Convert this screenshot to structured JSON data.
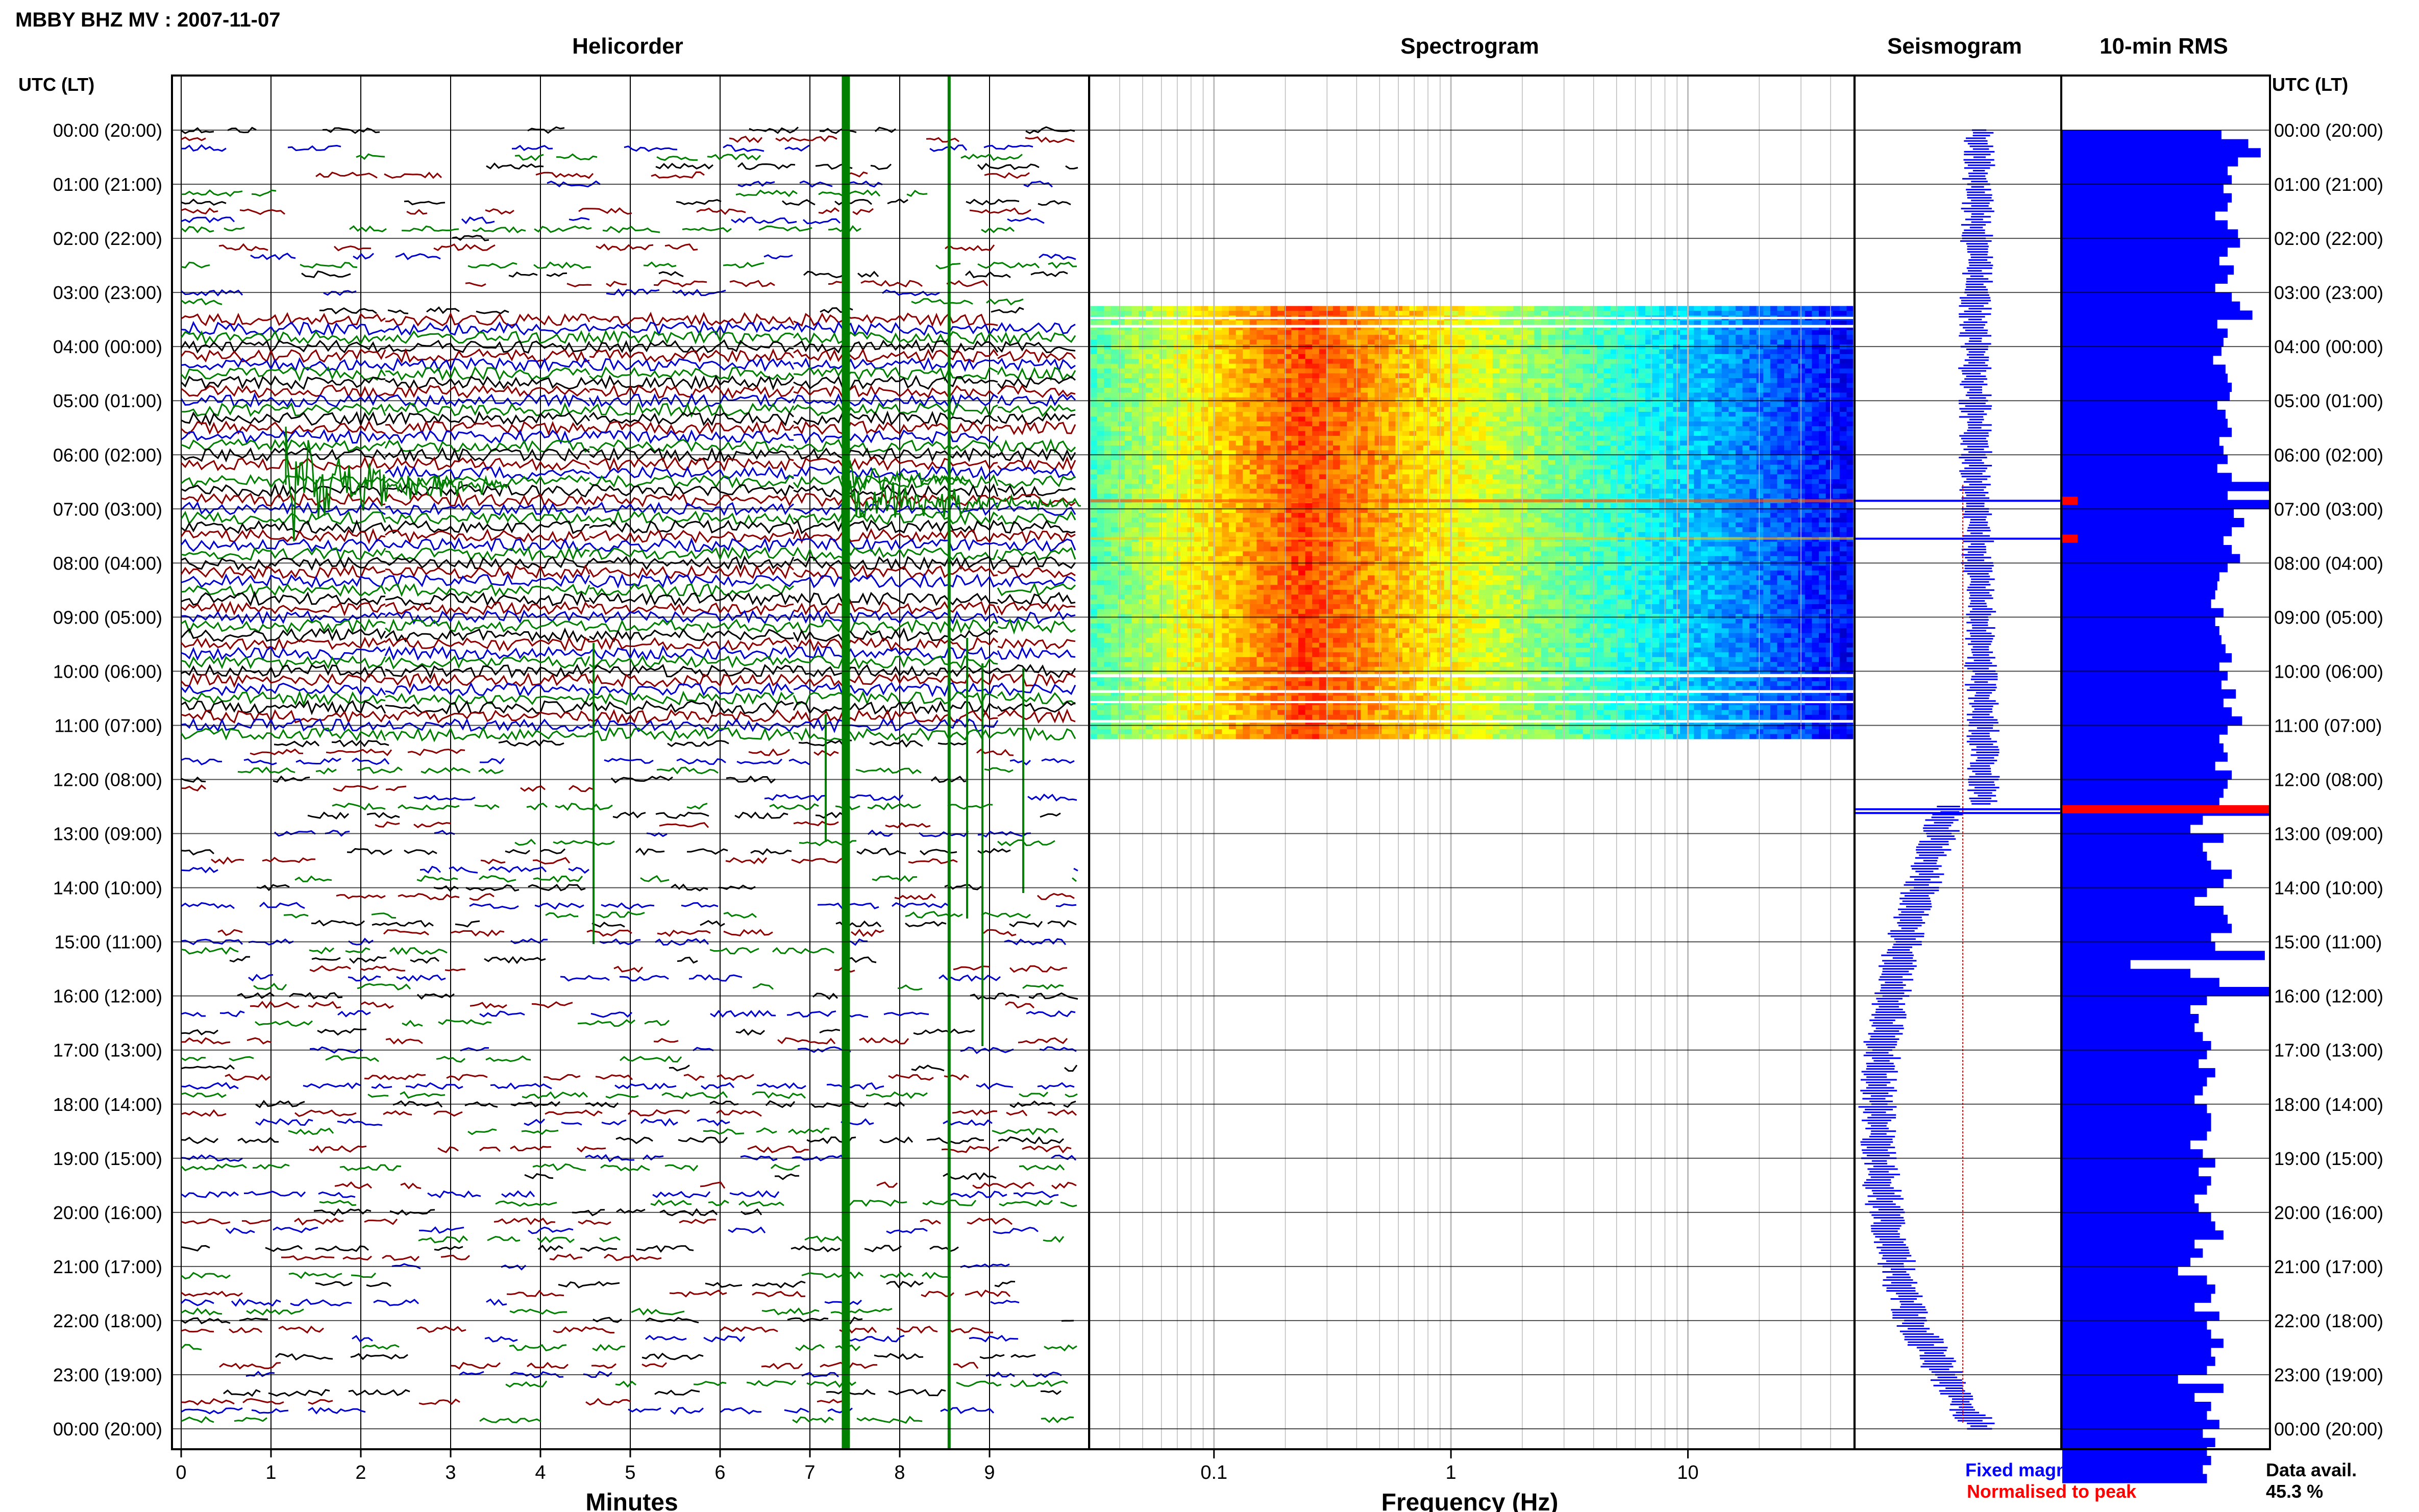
{
  "title": "MBBY BHZ MV : 2007-11-07",
  "panels": {
    "helicorder": "Helicorder",
    "spectrogram": "Spectrogram",
    "seismogram": "Seismogram",
    "rms": "10-min RMS"
  },
  "time_axis_label": "UTC (LT)",
  "time_labels": [
    "00:00 (20:00)",
    "01:00 (21:00)",
    "02:00 (22:00)",
    "03:00 (23:00)",
    "04:00 (00:00)",
    "05:00 (01:00)",
    "06:00 (02:00)",
    "07:00 (03:00)",
    "08:00 (04:00)",
    "09:00 (05:00)",
    "10:00 (06:00)",
    "11:00 (07:00)",
    "12:00 (08:00)",
    "13:00 (09:00)",
    "14:00 (10:00)",
    "15:00 (11:00)",
    "16:00 (12:00)",
    "17:00 (13:00)",
    "18:00 (14:00)",
    "19:00 (15:00)",
    "20:00 (16:00)",
    "21:00 (17:00)",
    "22:00 (18:00)",
    "23:00 (19:00)",
    "00:00 (20:00)"
  ],
  "helicorder_axis": {
    "label": "Minutes",
    "ticks": [
      "0",
      "1",
      "2",
      "3",
      "4",
      "5",
      "6",
      "7",
      "8",
      "9"
    ]
  },
  "spectrogram_axis": {
    "label": "Frequency (Hz)",
    "ticks": [
      "0.1",
      "1",
      "10"
    ]
  },
  "seismogram_legend": {
    "fixed": "Fixed magnification",
    "normalised": "Normalised to peak"
  },
  "data_availability": {
    "label": "Data avail.",
    "value": "45.3 %"
  },
  "colors": {
    "trace_colors": [
      "#000000",
      "#8b0000",
      "#0000cc",
      "#007f00"
    ],
    "event_marker": "#007f00",
    "fixed_magnification": "#0000ff",
    "normalised_to_peak": "#ff0000",
    "rms_bar": "#0000ff",
    "rms_peak": "#ff0000"
  },
  "chart_data": [
    {
      "type": "line",
      "panel": "Helicorder",
      "xlabel": "Minutes",
      "xlim": [
        0,
        10
      ],
      "ylabel": "UTC (LT)",
      "y_range_hours": [
        0,
        24
      ],
      "lines_per_hour": 6,
      "dense_data_hours": [
        3.5,
        11.2
      ],
      "event_minutes": [
        7.4,
        8.55
      ]
    },
    {
      "type": "heatmap",
      "panel": "Spectrogram",
      "xlabel": "Frequency (Hz)",
      "x_scale": "log",
      "xlim": [
        0.03,
        50
      ],
      "data_hours": [
        3.25,
        11.25
      ],
      "dominant_frequency_hz": [
        0.15,
        0.35
      ],
      "colormap": "jet"
    },
    {
      "type": "line",
      "panel": "Seismogram",
      "series": [
        {
          "name": "Fixed magnification",
          "color": "#0000ff"
        },
        {
          "name": "Normalised to peak",
          "color": "#ff0000"
        }
      ],
      "data_hours": [
        0,
        24
      ]
    },
    {
      "type": "bar",
      "panel": "10-min RMS",
      "orientation": "horizontal",
      "values_hours_relative": [
        0.77,
        0.9,
        0.96,
        0.85,
        0.8,
        0.82,
        0.78,
        0.82,
        0.8,
        0.74,
        0.8,
        0.85,
        0.86,
        0.8,
        0.76,
        0.83,
        0.8,
        0.74,
        0.82,
        0.86,
        0.92,
        0.75,
        0.8,
        0.78,
        0.77,
        0.73,
        0.79,
        0.8,
        0.82,
        0.81,
        0.75,
        0.79,
        0.8,
        0.82,
        0.76,
        0.78,
        0.8,
        0.75,
        0.82,
        1.0,
        0.8,
        1.0,
        0.83,
        0.88,
        0.82,
        0.78,
        0.82,
        0.86,
        0.8,
        0.76,
        0.75,
        0.74,
        0.72,
        0.78,
        0.74,
        0.76,
        0.77,
        0.79,
        0.82,
        0.76,
        0.8,
        0.77,
        0.84,
        0.78,
        0.82,
        0.87,
        0.8,
        0.76,
        0.78,
        0.8,
        0.74,
        0.82,
        0.8,
        0.78,
        0.76,
        1.0,
        0.68,
        0.62,
        0.78,
        0.68,
        0.7,
        0.72,
        0.82,
        0.78,
        0.7,
        0.64,
        0.78,
        0.8,
        0.82,
        0.72,
        0.74,
        0.98,
        0.33,
        0.62,
        0.76,
        1.0,
        0.7,
        0.62,
        0.66,
        0.64,
        0.68,
        0.72,
        0.7,
        0.66,
        0.74,
        0.7,
        0.68,
        0.64,
        0.7,
        0.72,
        0.72,
        0.7,
        0.62,
        0.68,
        0.74,
        0.66,
        0.72,
        0.7,
        0.64,
        0.66,
        0.72,
        0.74,
        0.78,
        0.64,
        0.68,
        0.62,
        0.56,
        0.7,
        0.74,
        0.72,
        0.64,
        0.76,
        0.7,
        0.72,
        0.78,
        0.72,
        0.74,
        0.7,
        0.56,
        0.78,
        0.64,
        0.72,
        0.7,
        0.76,
        0.68,
        0.74,
        0.7,
        0.72,
        0.68,
        0.7
      ],
      "peak_hours": [
        6.85,
        7.55,
        12.55
      ]
    }
  ]
}
